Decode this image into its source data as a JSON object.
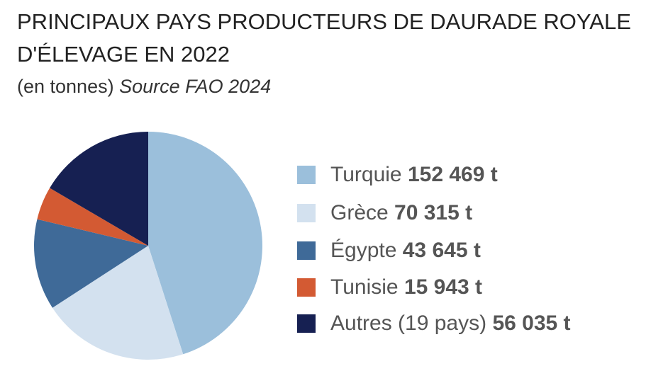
{
  "chart_data": {
    "type": "pie",
    "title": "PRINCIPAUX PAYS PRODUCTEURS DE DAURADE ROYALE D'ÉLEVAGE EN 2022",
    "subtitle": "(en tonnes)",
    "source": "Source FAO 2024",
    "categories": [
      "Turquie",
      "Grèce",
      "Égypte",
      "Tunisie",
      "Autres (19 pays)"
    ],
    "values": [
      152469,
      70315,
      43645,
      15943,
      56035
    ],
    "value_labels": [
      "152 469 t",
      "70 315 t",
      "43 645 t",
      "15 943 t",
      "56 035 t"
    ],
    "colors": [
      "#9bbfdb",
      "#d3e1ef",
      "#3f6a98",
      "#d35a33",
      "#162052"
    ]
  }
}
